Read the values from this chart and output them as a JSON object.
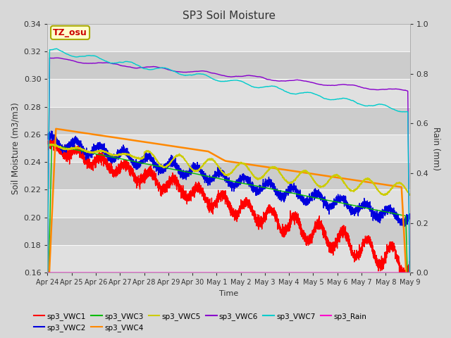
{
  "title": "SP3 Soil Moisture",
  "xlabel": "Time",
  "ylabel_left": "Soil Moisture (m3/m3)",
  "ylabel_right": "Rain (mm)",
  "ylim_left": [
    0.16,
    0.34
  ],
  "ylim_right": [
    0.0,
    1.0
  ],
  "yticks_left": [
    0.16,
    0.18,
    0.2,
    0.22,
    0.24,
    0.26,
    0.28,
    0.3,
    0.32,
    0.34
  ],
  "yticks_right": [
    0.0,
    0.2,
    0.4,
    0.6,
    0.8,
    1.0
  ],
  "band_colors": [
    "#e0e0e0",
    "#cccccc"
  ],
  "fig_bg": "#d8d8d8",
  "series": {
    "sp3_VWC1": {
      "color": "#ff0000",
      "lw": 1.0
    },
    "sp3_VWC2": {
      "color": "#0000dd",
      "lw": 1.0
    },
    "sp3_VWC3": {
      "color": "#00bb00",
      "lw": 1.0
    },
    "sp3_VWC4": {
      "color": "#ff8800",
      "lw": 1.8
    },
    "sp3_VWC5": {
      "color": "#cccc00",
      "lw": 1.0
    },
    "sp3_VWC6": {
      "color": "#8800cc",
      "lw": 1.0
    },
    "sp3_VWC7": {
      "color": "#00cccc",
      "lw": 1.0
    },
    "sp3_Rain": {
      "color": "#ff00cc",
      "lw": 0.8
    }
  },
  "annotation_text": "TZ_osu",
  "annotation_color": "#cc0000",
  "annotation_bg": "#ffffcc",
  "annotation_border": "#aaaa00",
  "tick_labels": [
    "Apr 24",
    "Apr 25",
    "Apr 26",
    "Apr 27",
    "Apr 28",
    "Apr 29",
    "Apr 30",
    "May 1",
    "May 2",
    "May 3",
    "May 4",
    "May 5",
    "May 6",
    "May 7",
    "May 8",
    "May 9"
  ],
  "legend_row1": [
    "sp3_VWC1",
    "sp3_VWC2",
    "sp3_VWC3",
    "sp3_VWC4",
    "sp3_VWC5",
    "sp3_VWC6"
  ],
  "legend_row2": [
    "sp3_VWC7",
    "sp3_Rain"
  ]
}
